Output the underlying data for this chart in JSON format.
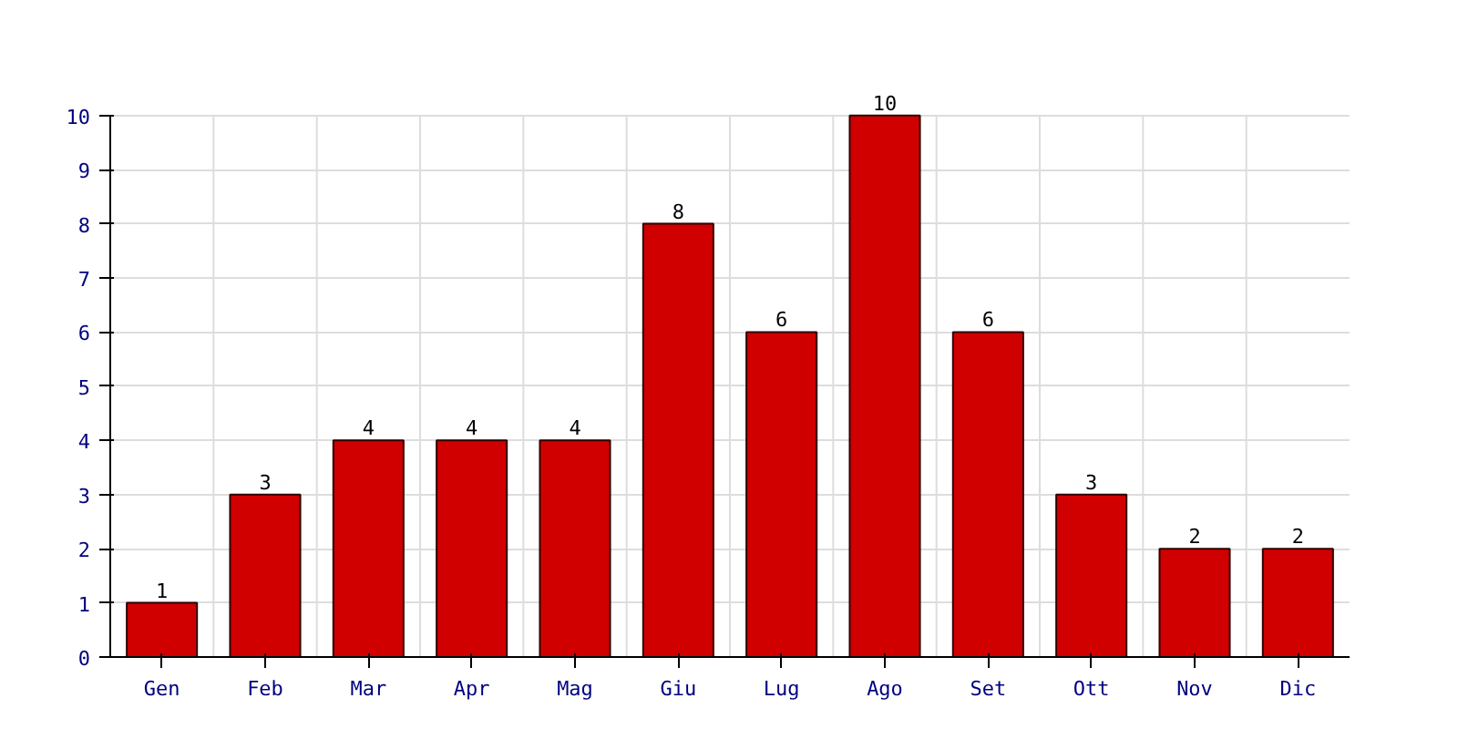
{
  "chart_data": {
    "type": "bar",
    "categories": [
      "Gen",
      "Feb",
      "Mar",
      "Apr",
      "Mag",
      "Giu",
      "Lug",
      "Ago",
      "Set",
      "Ott",
      "Nov",
      "Dic"
    ],
    "values": [
      1,
      3,
      4,
      4,
      4,
      8,
      6,
      10,
      6,
      3,
      2,
      2
    ],
    "color": "#d00000",
    "ylim": [
      0,
      10
    ],
    "yticks": [
      0,
      1,
      2,
      3,
      4,
      5,
      6,
      7,
      8,
      9,
      10
    ],
    "grid": true,
    "data_labels": true
  }
}
